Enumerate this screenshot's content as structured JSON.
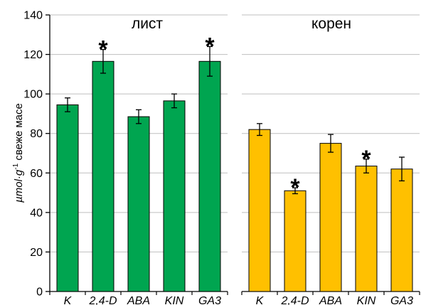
{
  "chart_data": {
    "type": "bar",
    "ylabel": {
      "unit": "µmol·g",
      "exponent": "-1",
      "text": " свеже масе"
    },
    "ylim": [
      0,
      140
    ],
    "yticks": [
      "0",
      "20",
      "40",
      "60",
      "80",
      "100",
      "120",
      "140"
    ],
    "grid": true,
    "panels": [
      {
        "title": "лист",
        "color": "#00a550",
        "categories": [
          "K",
          "2,4-D",
          "ABA",
          "KIN",
          "GA3"
        ],
        "values": [
          94.5,
          116.5,
          88.5,
          96.5,
          116.5
        ],
        "errors": [
          3.5,
          6.0,
          3.5,
          3.5,
          7.5
        ],
        "significant": [
          false,
          true,
          false,
          false,
          true
        ]
      },
      {
        "title": "корен",
        "color": "#ffc000",
        "categories": [
          "K",
          "2,4-D",
          "ABA",
          "KIN",
          "GA3"
        ],
        "values": [
          82.0,
          51.0,
          75.0,
          63.5,
          62.0
        ],
        "errors": [
          3.0,
          1.5,
          4.5,
          3.5,
          6.0
        ],
        "significant": [
          false,
          true,
          false,
          true,
          false
        ]
      }
    ],
    "significance_mark": "*"
  }
}
